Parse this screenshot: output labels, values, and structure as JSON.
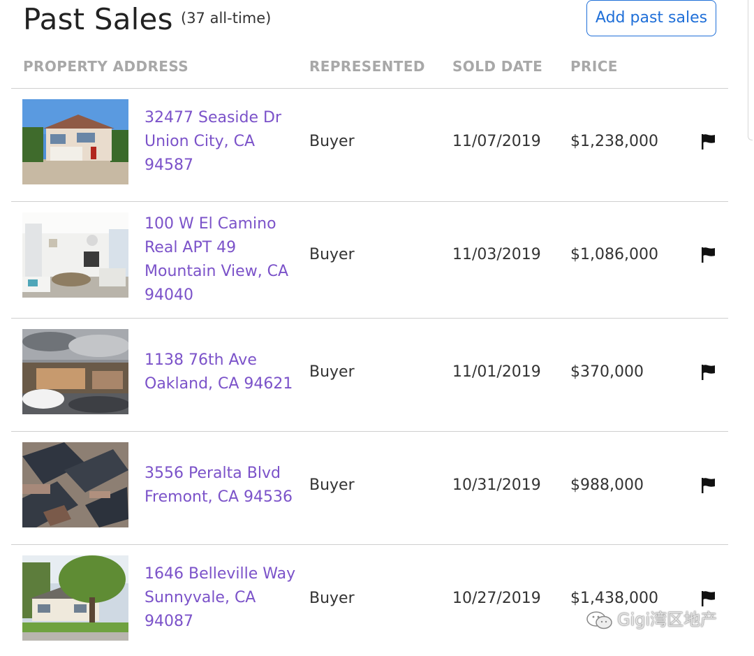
{
  "header": {
    "title": "Past Sales",
    "count": "(37 all-time)",
    "add_button": "Add past sales"
  },
  "columns": {
    "address": "PROPERTY ADDRESS",
    "represented": "REPRESENTED",
    "sold_date": "SOLD DATE",
    "price": "PRICE"
  },
  "rows": [
    {
      "address_lines": [
        "32477 Seaside Dr",
        "Union City, CA",
        "94587"
      ],
      "represented": "Buyer",
      "sold_date": "11/07/2019",
      "price": "$1,238,000",
      "photo": "house-exterior"
    },
    {
      "address_lines": [
        "100 W El Camino",
        "Real APT 49",
        "Mountain View, CA",
        "94040"
      ],
      "represented": "Buyer",
      "sold_date": "11/03/2019",
      "price": "$1,086,000",
      "photo": "living-room-interior"
    },
    {
      "address_lines": [
        "1138 76th Ave",
        "Oakland, CA 94621"
      ],
      "represented": "Buyer",
      "sold_date": "11/01/2019",
      "price": "$370,000",
      "photo": "street-view"
    },
    {
      "address_lines": [
        "3556 Peralta Blvd",
        "Fremont, CA 94536"
      ],
      "represented": "Buyer",
      "sold_date": "10/31/2019",
      "price": "$988,000",
      "photo": "aerial-view"
    },
    {
      "address_lines": [
        "1646 Belleville Way",
        "Sunnyvale, CA",
        "94087"
      ],
      "represented": "Buyer",
      "sold_date": "10/27/2019",
      "price": "$1,438,000",
      "photo": "house-with-tree"
    }
  ],
  "watermark": "Gigi湾区地产",
  "colors": {
    "link": "#7b52c9",
    "accent": "#1f6fd8",
    "header_text": "#a8a8a8"
  }
}
